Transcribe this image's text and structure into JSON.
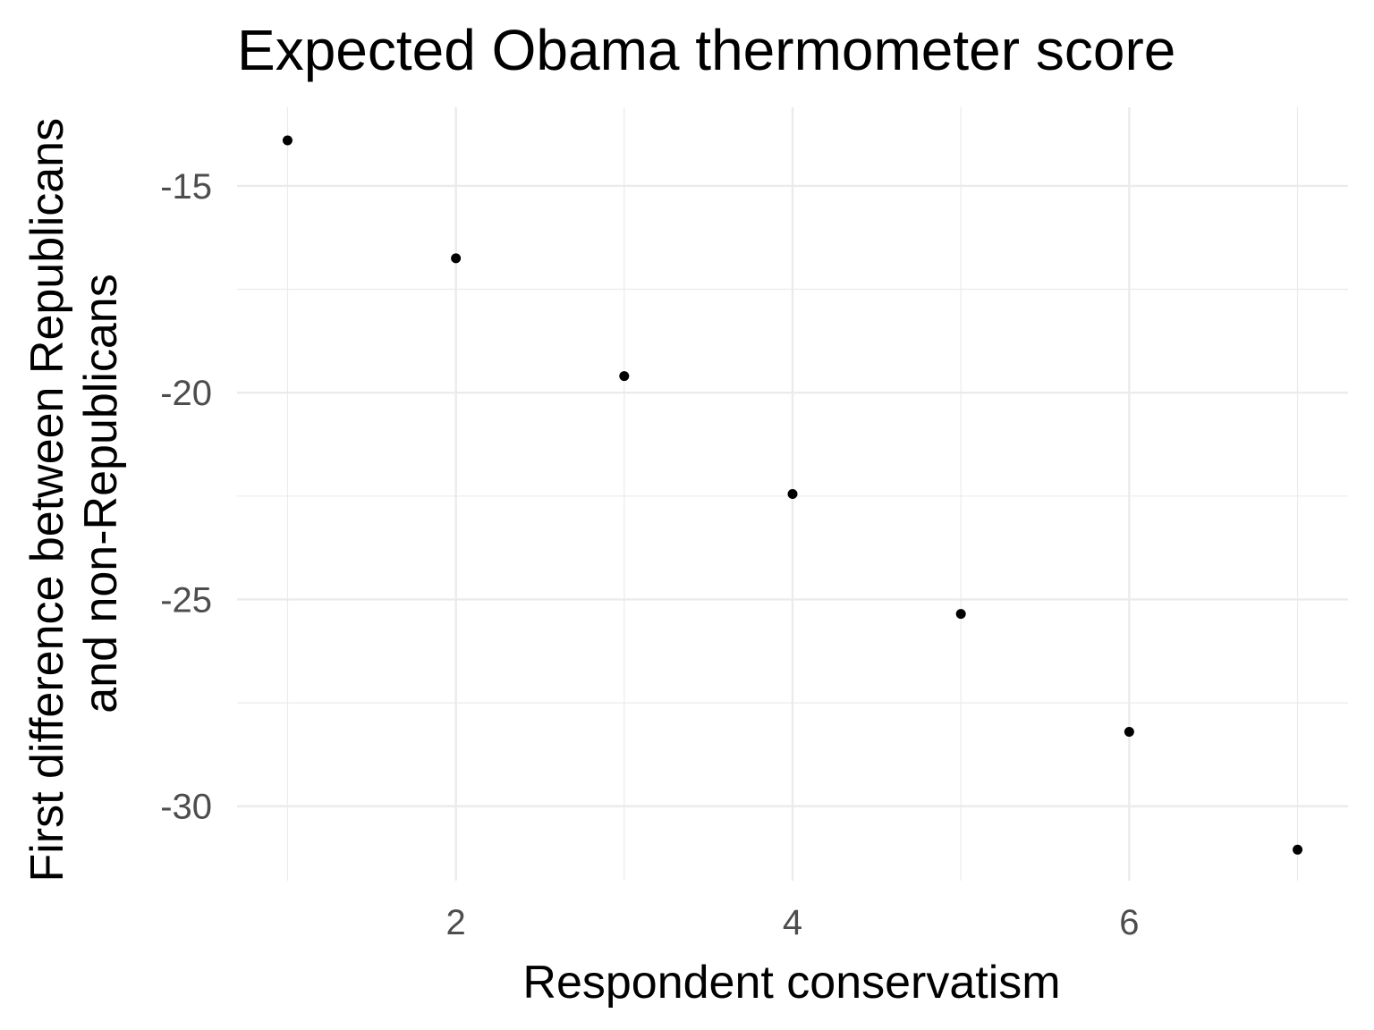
{
  "chart_data": {
    "type": "scatter",
    "title": "Expected Obama thermometer score",
    "xlabel": "Respondent conservatism",
    "ylabel": [
      "First difference between Republicans",
      "and non-Republicans"
    ],
    "x": [
      1,
      2,
      3,
      4,
      5,
      6,
      7
    ],
    "y": [
      -13.9,
      -16.75,
      -19.6,
      -22.45,
      -25.35,
      -28.2,
      -31.05
    ],
    "xlim": [
      0.7,
      7.3
    ],
    "ylim": [
      -31.8,
      -13.1
    ],
    "x_ticks": [
      2,
      4,
      6
    ],
    "x_tick_labels": [
      "2",
      "4",
      "6"
    ],
    "y_ticks": [
      -15,
      -20,
      -25,
      -30
    ],
    "y_tick_labels": [
      "-15",
      "-20",
      "-25",
      "-30"
    ],
    "x_minor_ticks": [
      1,
      3,
      5,
      7
    ],
    "y_minor_ticks": [
      -17.5,
      -22.5,
      -27.5
    ],
    "grid": true,
    "colors": {
      "point": "#000000",
      "grid": "#ebebeb",
      "tick_text": "#4d4d4d"
    }
  }
}
